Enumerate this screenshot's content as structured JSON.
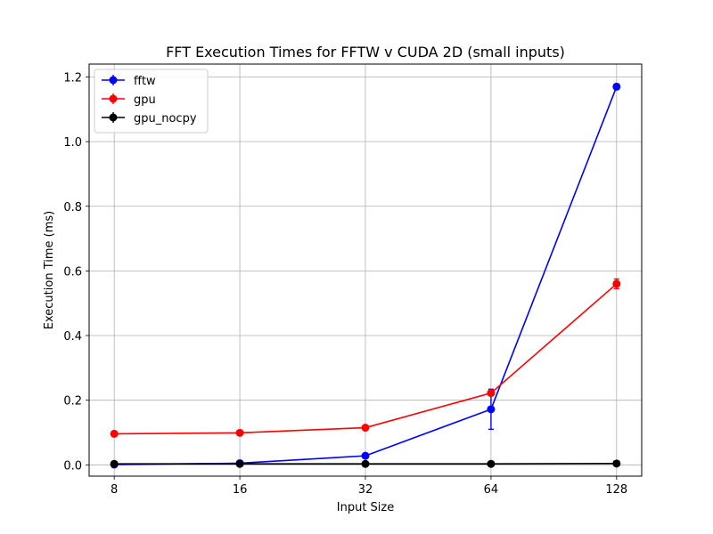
{
  "chart_data": {
    "type": "line",
    "title": "FFT Execution Times for FFTW v CUDA 2D (small inputs)",
    "xlabel": "Input Size",
    "ylabel": "Execution Time (ms)",
    "x_scale": "log2",
    "x": [
      8,
      16,
      32,
      64,
      128
    ],
    "x_tick_labels": [
      "8",
      "16",
      "32",
      "64",
      "128"
    ],
    "ylim": [
      -0.035,
      1.24
    ],
    "y_ticks": [
      0.0,
      0.2,
      0.4,
      0.6,
      0.8,
      1.0,
      1.2
    ],
    "y_tick_labels": [
      "0.0",
      "0.2",
      "0.4",
      "0.6",
      "0.8",
      "1.0",
      "1.2"
    ],
    "grid": true,
    "legend_position": "upper-left",
    "series": [
      {
        "name": "fftw",
        "color": "#0000ff",
        "values": [
          0.001,
          0.005,
          0.028,
          0.172,
          1.17
        ],
        "errors": [
          0.001,
          0.001,
          0.002,
          0.062,
          0.008
        ]
      },
      {
        "name": "gpu",
        "color": "#ff0000",
        "values": [
          0.096,
          0.099,
          0.115,
          0.222,
          0.56
        ],
        "errors": [
          0.002,
          0.002,
          0.003,
          0.004,
          0.015
        ]
      },
      {
        "name": "gpu_nocpy",
        "color": "#000000",
        "values": [
          0.003,
          0.003,
          0.003,
          0.003,
          0.004
        ],
        "errors": [
          0.001,
          0.001,
          0.001,
          0.001,
          0.001
        ]
      }
    ]
  }
}
